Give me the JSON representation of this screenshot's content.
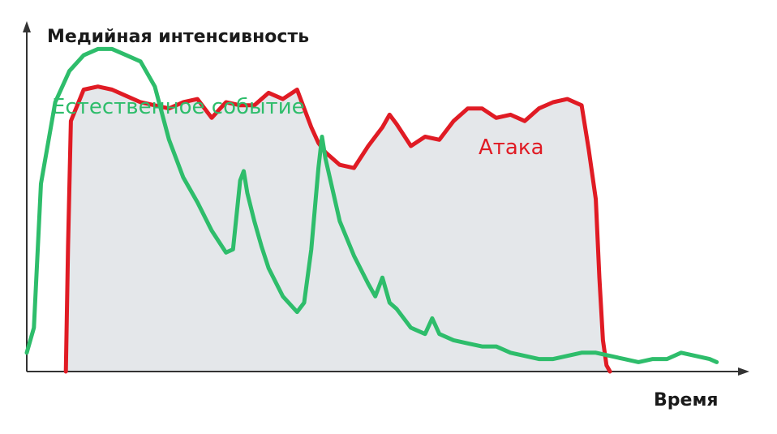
{
  "chart_data": {
    "type": "line",
    "ylabel": "Медийная интенсивность",
    "xlabel": "Время",
    "xlim": [
      0,
      100
    ],
    "ylim": [
      0,
      100
    ],
    "grid": false,
    "series": [
      {
        "name": "Естественное событие",
        "color": "#2ebd6b",
        "label_text": "Естественное событие",
        "x": [
          0,
          1,
          2,
          4,
          6,
          8,
          10,
          12,
          14,
          16,
          18,
          20,
          22,
          24,
          26,
          28,
          29,
          30,
          30.5,
          31,
          32,
          33,
          34,
          36,
          38,
          39,
          40,
          41,
          41.5,
          42,
          43,
          44,
          46,
          48,
          49,
          50,
          51,
          52,
          54,
          56,
          57,
          58,
          60,
          62,
          64,
          66,
          68,
          70,
          72,
          74,
          76,
          78,
          80,
          82,
          84,
          86,
          88,
          90,
          92,
          94,
          96,
          97
        ],
        "y": [
          6,
          14,
          60,
          86,
          96,
          101,
          103,
          103,
          101,
          99,
          91,
          74,
          62,
          54,
          45,
          38,
          39,
          61,
          64,
          57,
          48,
          40,
          33,
          24,
          19,
          22,
          39,
          65,
          75,
          68,
          58,
          48,
          37,
          28,
          24,
          30,
          22,
          20,
          14,
          12,
          17,
          12,
          10,
          9,
          8,
          8,
          6,
          5,
          4,
          4,
          5,
          6,
          6,
          5,
          4,
          3,
          4,
          4,
          6,
          5,
          4,
          3
        ]
      },
      {
        "name": "Атака",
        "color": "#e01b24",
        "label_text": "Атака",
        "x": [
          5.5,
          5.8,
          6.2,
          8,
          10,
          12,
          14,
          16,
          18,
          20,
          22,
          24,
          26,
          28,
          30,
          32,
          34,
          36,
          38,
          40,
          41,
          42,
          44,
          46,
          48,
          50,
          51,
          52,
          54,
          56,
          58,
          60,
          62,
          64,
          66,
          68,
          70,
          72,
          74,
          76,
          78,
          79,
          80,
          80.5,
          81,
          81.5,
          82
        ],
        "y": [
          0,
          40,
          80,
          90,
          91,
          90,
          88,
          86,
          85,
          84,
          86,
          87,
          81,
          86,
          85,
          85,
          89,
          87,
          90,
          78,
          73,
          70,
          66,
          65,
          72,
          78,
          82,
          79,
          72,
          75,
          74,
          80,
          84,
          84,
          81,
          82,
          80,
          84,
          86,
          87,
          85,
          71,
          55,
          30,
          10,
          2,
          0
        ]
      }
    ]
  }
}
